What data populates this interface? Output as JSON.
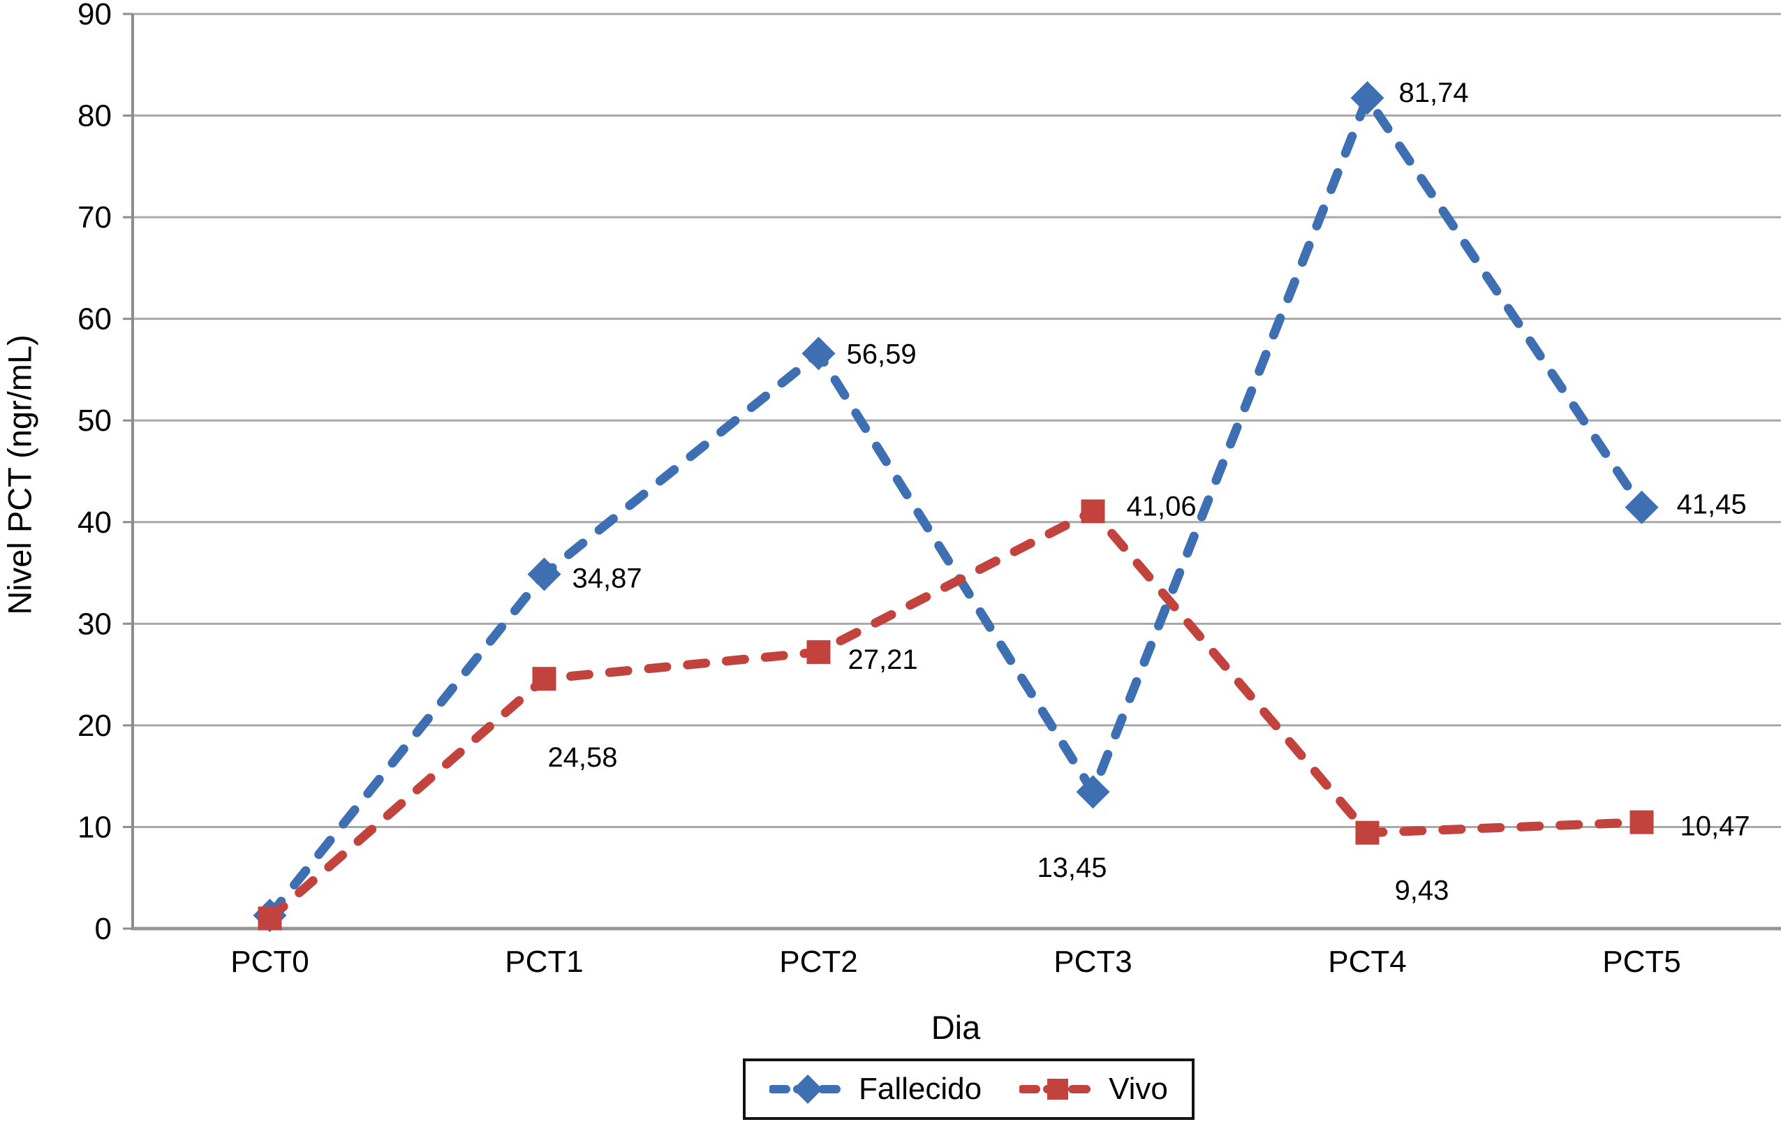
{
  "axes": {
    "x_title": "Dia",
    "y_title": "Nivel PCT (ngr/mL)"
  },
  "chart_data": {
    "type": "line",
    "categories": [
      "PCT0",
      "PCT1",
      "PCT2",
      "PCT3",
      "PCT4",
      "PCT5"
    ],
    "xlabel": "Dia",
    "ylabel": "Nivel PCT (ngr/mL)",
    "ylim": [
      0,
      90
    ],
    "yticks": [
      0,
      10,
      20,
      30,
      40,
      50,
      60,
      70,
      80,
      90
    ],
    "grid": true,
    "legend_position": "bottom-center-boxed",
    "decimal_separator": ",",
    "colors": {
      "gridline": "#A8A8A8",
      "axis": "#8C8C8C",
      "baseline": "#969696",
      "text": "#000000"
    },
    "series": [
      {
        "name": "Fallecido",
        "color": "#3E6FB3",
        "marker": "diamond",
        "linestyle": "dashed",
        "values": [
          1.3,
          34.87,
          56.59,
          13.45,
          81.74,
          41.45
        ],
        "labels": [
          "",
          "34,87",
          "56,59",
          "13,45",
          "81,74",
          "41,45"
        ],
        "label_offsets": [
          [
            0,
            0
          ],
          [
            40,
            5
          ],
          [
            40,
            0
          ],
          [
            -30,
            108
          ],
          [
            45,
            -8
          ],
          [
            50,
            -5
          ]
        ],
        "label_anchors": [
          "start",
          "start",
          "start",
          "middle",
          "start",
          "start"
        ]
      },
      {
        "name": "Vivo",
        "color": "#C2423E",
        "marker": "square",
        "linestyle": "dashed",
        "values": [
          1.0,
          24.58,
          27.21,
          41.06,
          9.43,
          10.47
        ],
        "labels": [
          "",
          "24,58",
          "27,21",
          "41,06",
          "9,43",
          "10,47"
        ],
        "label_offsets": [
          [
            0,
            0
          ],
          [
            55,
            112
          ],
          [
            42,
            10
          ],
          [
            48,
            -8
          ],
          [
            78,
            82
          ],
          [
            55,
            5
          ]
        ],
        "label_anchors": [
          "start",
          "middle",
          "start",
          "start",
          "middle",
          "start"
        ]
      }
    ]
  }
}
